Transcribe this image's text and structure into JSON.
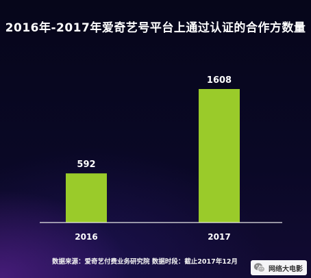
{
  "title": "2016年-2017年爱奇艺号平台上通过认证的合作方数量",
  "source": "数据来源：爱奇艺付费业务研究院   数据时段：截止2017年12月",
  "watermark": {
    "text": "网络大电影",
    "icon": "wechat-icon"
  },
  "colors": {
    "bar": "#9acb2a",
    "axis": "#e8e8e8",
    "text": "#ffffff",
    "background": "#07061c"
  },
  "chart_data": {
    "type": "bar",
    "categories": [
      "2016",
      "2017"
    ],
    "values": [
      592,
      1608
    ],
    "title": "2016年-2017年爱奇艺号平台上通过认证的合作方数量",
    "xlabel": "",
    "ylabel": "",
    "ylim": [
      0,
      1800
    ],
    "grid": false,
    "data_labels": true
  }
}
